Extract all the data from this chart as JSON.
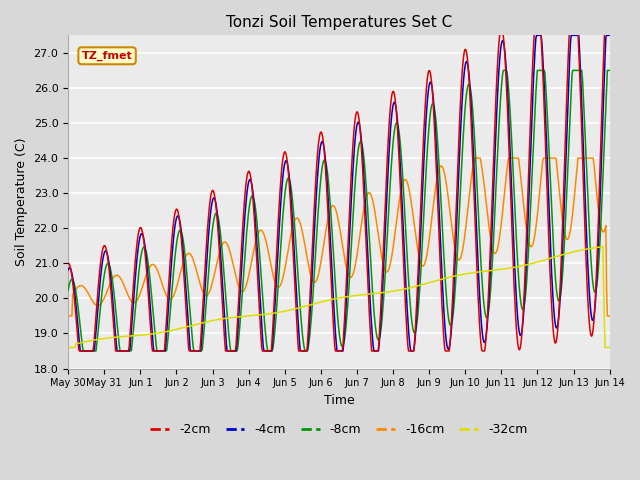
{
  "title": "Tonzi Soil Temperatures Set C",
  "xlabel": "Time",
  "ylabel": "Soil Temperature (C)",
  "ylim": [
    18.0,
    27.5
  ],
  "yticks": [
    18.0,
    19.0,
    20.0,
    21.0,
    22.0,
    23.0,
    24.0,
    25.0,
    26.0,
    27.0
  ],
  "annotation_text": "TZ_fmet",
  "annotation_color": "#cc0000",
  "annotation_bg": "#ffffcc",
  "annotation_border": "#cc8800",
  "series_colors": {
    "-2cm": "#dd0000",
    "-4cm": "#0000cc",
    "-8cm": "#009900",
    "-16cm": "#ff8800",
    "-32cm": "#dddd00"
  },
  "tick_labels": [
    "May 30",
    "May 31",
    "Jun 1",
    "Jun 2",
    "Jun 3",
    "Jun 4",
    "Jun 5",
    "Jun 6",
    "Jun 7",
    "Jun 8",
    "Jun 9",
    "Jun 10",
    "Jun 11",
    "Jun 12",
    "Jun 13",
    "Jun 14"
  ],
  "tick_positions": [
    0,
    1,
    2,
    3,
    4,
    5,
    6,
    7,
    8,
    9,
    10,
    11,
    12,
    13,
    14,
    15
  ]
}
